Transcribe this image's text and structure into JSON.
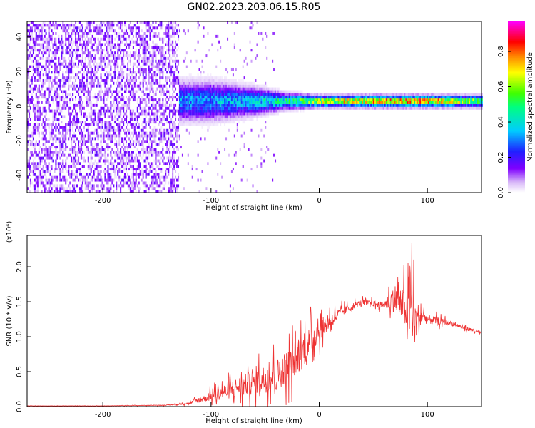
{
  "title": "GN02.2023.203.06.15.R05",
  "chart_data": [
    {
      "type": "heatmap",
      "xlabel": "Height of straight line (km)",
      "ylabel": "Frequency (Hz)",
      "xlim": [
        -270,
        150
      ],
      "ylim": [
        -50,
        49
      ],
      "xticks": [
        -200,
        -100,
        0,
        100
      ],
      "yticks": [
        -40,
        -20,
        0,
        20,
        40
      ],
      "colorbar": {
        "label": "Normalized spectral amplitude",
        "range": [
          0,
          0.97
        ],
        "ticks": [
          "0.0",
          "0.2",
          "0.4",
          "0.6",
          "0.8"
        ],
        "colormap": [
          "#ffffff",
          "#d8b8f8",
          "#7f00ff",
          "#2020ff",
          "#00ccff",
          "#00ff80",
          "#40ff00",
          "#ffff00",
          "#ff8000",
          "#ff0000",
          "#ff00ff"
        ]
      },
      "features": {
        "noise_region_x": [
          -270,
          -130
        ],
        "signal_band": [
          {
            "x": -130,
            "spread_hz": 10,
            "amp": 0.35
          },
          {
            "x": -100,
            "spread_hz": 10,
            "amp": 0.35
          },
          {
            "x": -60,
            "spread_hz": 7,
            "amp": 0.4
          },
          {
            "x": -30,
            "spread_hz": 4,
            "amp": 0.5
          },
          {
            "x": 0,
            "spread_hz": 3,
            "amp": 0.7
          },
          {
            "x": 50,
            "spread_hz": 3,
            "amp": 0.85
          },
          {
            "x": 100,
            "spread_hz": 3,
            "amp": 0.85
          },
          {
            "x": 150,
            "spread_hz": 3,
            "amp": 0.6
          }
        ],
        "center_frequency_hz": 2
      }
    },
    {
      "type": "line",
      "xlabel": "Height of straight line (km)",
      "ylabel": "SNR (10 * v/v)",
      "y_multiplier": "(x10⁴)",
      "xlim": [
        -270,
        150
      ],
      "ylim": [
        0,
        2.45
      ],
      "xticks": [
        -200,
        -100,
        0,
        100
      ],
      "yticks": [
        "0.0",
        "0.5",
        "1.0",
        "1.5",
        "2.0"
      ],
      "color": "#ee3333",
      "envelope": {
        "x": [
          -270,
          -200,
          -140,
          -120,
          -100,
          -80,
          -60,
          -40,
          -20,
          -10,
          0,
          20,
          40,
          60,
          70,
          80,
          85,
          90,
          95,
          100,
          120,
          150
        ],
        "y": [
          0.01,
          0.01,
          0.02,
          0.05,
          0.15,
          0.25,
          0.35,
          0.45,
          0.7,
          0.9,
          1.1,
          1.35,
          1.5,
          1.45,
          1.55,
          1.4,
          1.3,
          1.2,
          1.3,
          1.25,
          1.2,
          1.05
        ],
        "noise": [
          0.003,
          0.003,
          0.01,
          0.04,
          0.15,
          0.3,
          0.4,
          0.5,
          0.55,
          0.5,
          0.35,
          0.15,
          0.08,
          0.1,
          0.45,
          0.6,
          0.8,
          0.7,
          0.25,
          0.15,
          0.08,
          0.05
        ]
      }
    }
  ]
}
